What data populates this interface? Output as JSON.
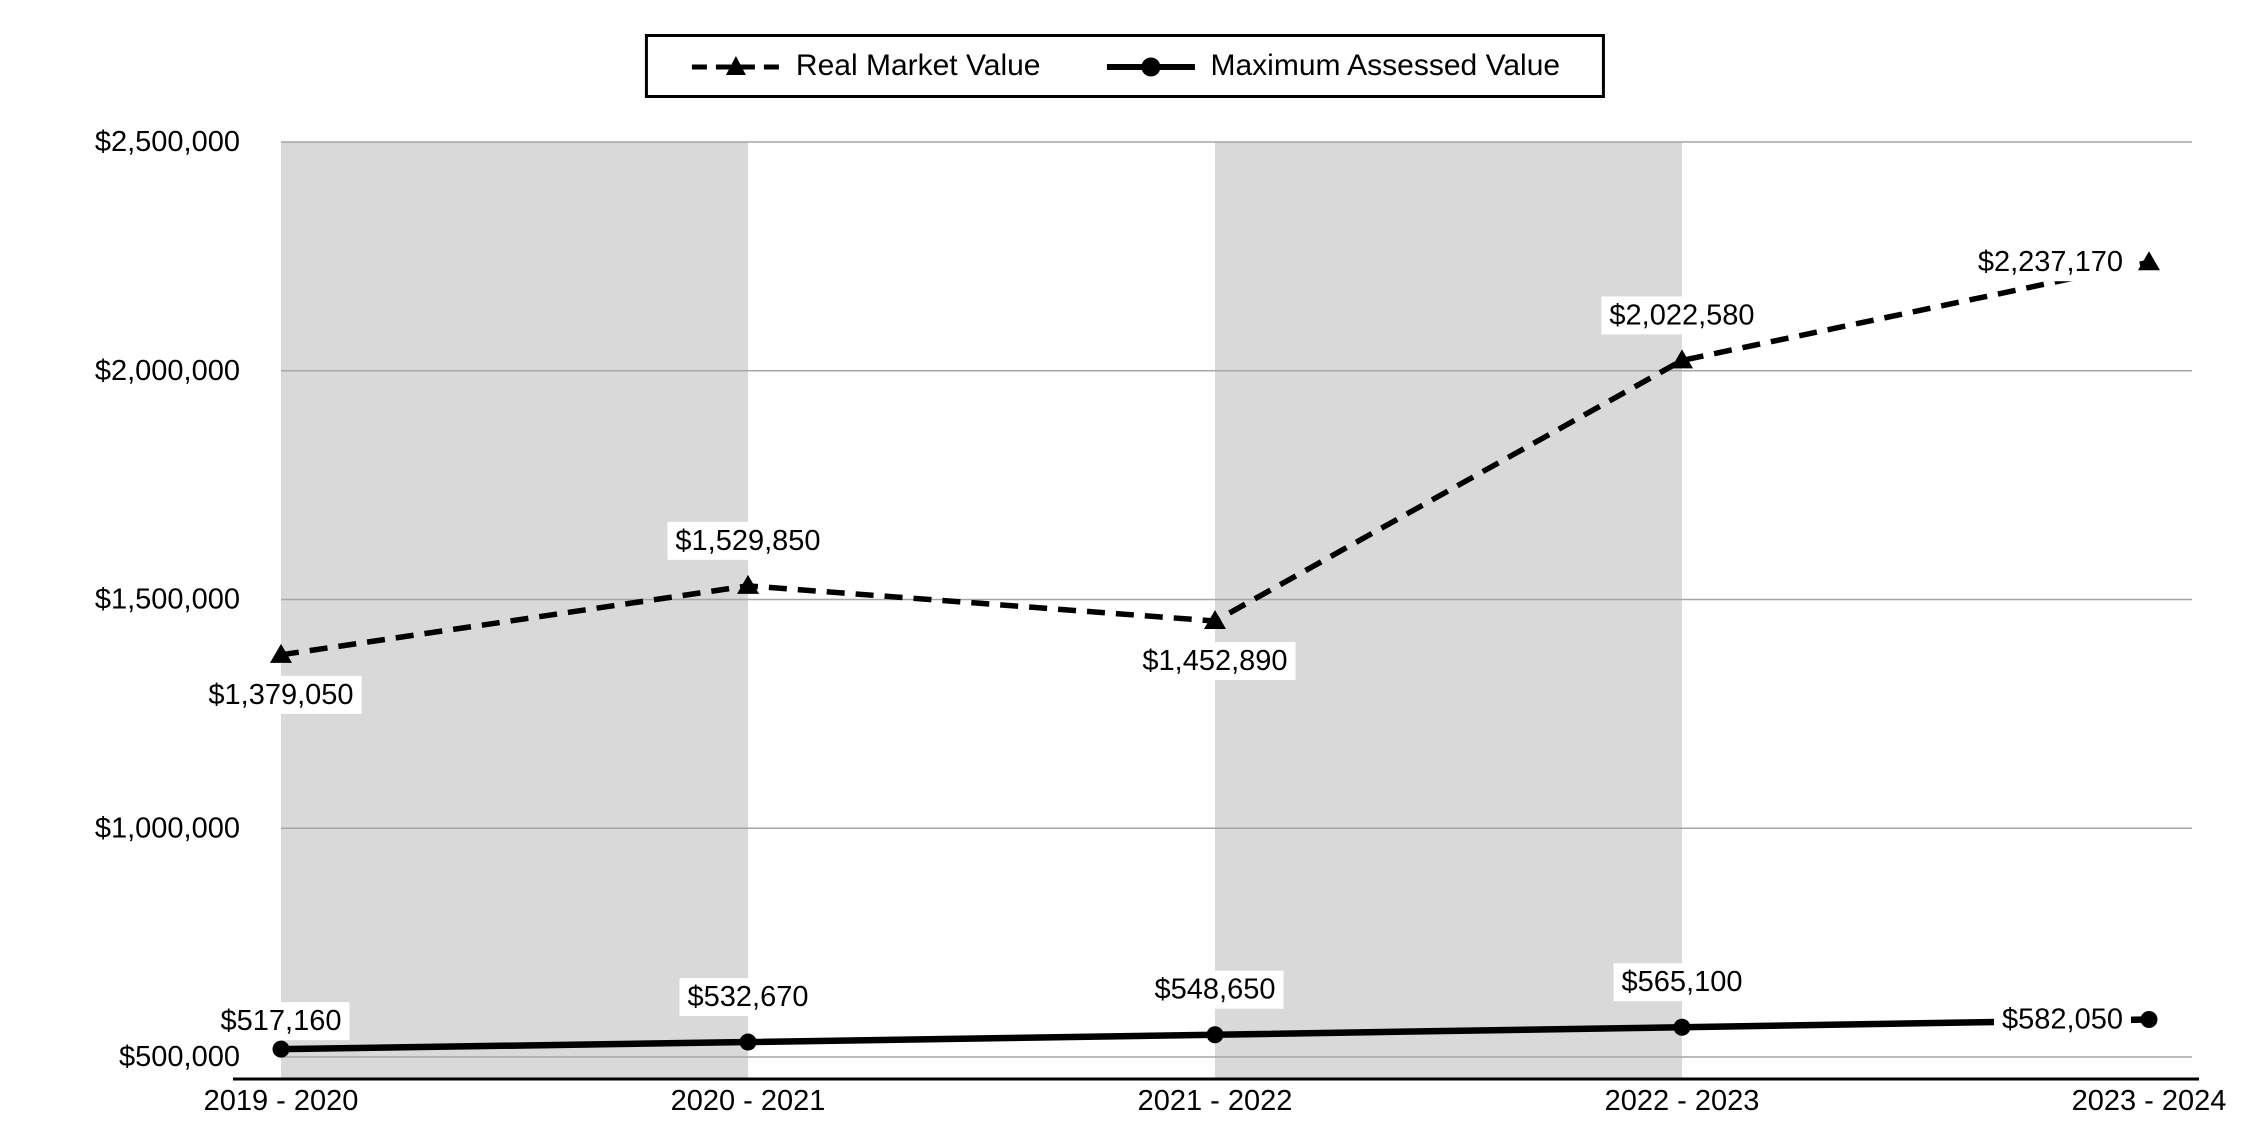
{
  "chart_data": {
    "type": "line",
    "title": "",
    "categories": [
      "2019 - 2020",
      "2020 - 2021",
      "2021 - 2022",
      "2022 - 2023",
      "2023 - 2024"
    ],
    "series": [
      {
        "name": "Real Market Value",
        "values": [
          1379050,
          1529850,
          1452890,
          2022580,
          2237170
        ],
        "labels": [
          "$1,379,050",
          "$1,529,850",
          "$1,452,890",
          "$2,022,580",
          "$2,237,170"
        ],
        "line_style": "dashed",
        "marker": "triangle",
        "color": "#000000",
        "label_positions": [
          "below",
          "above",
          "below",
          "above",
          "left"
        ]
      },
      {
        "name": "Maximum Assessed Value",
        "values": [
          517160,
          532670,
          548650,
          565100,
          582050
        ],
        "labels": [
          "$517,160",
          "$532,670",
          "$548,650",
          "$565,100",
          "$582,050"
        ],
        "line_style": "solid",
        "marker": "circle",
        "color": "#000000",
        "label_positions": [
          "above-close",
          "above",
          "above",
          "above",
          "left"
        ]
      }
    ],
    "y_axis": {
      "min": 500000,
      "max": 2500000,
      "step": 500000,
      "tick_labels": [
        "$500,000",
        "$1,000,000",
        "$1,500,000",
        "$2,000,000",
        "$2,500,000"
      ]
    },
    "grid": true,
    "gridline_color": "#a6a6a6",
    "plot_bands": {
      "color": "#d9d9d9",
      "ranges": [
        [
          0,
          1
        ],
        [
          2,
          3
        ]
      ]
    },
    "legend": {
      "position": "top",
      "border": true,
      "entries": [
        "Real Market Value",
        "Maximum Assessed Value"
      ]
    }
  }
}
